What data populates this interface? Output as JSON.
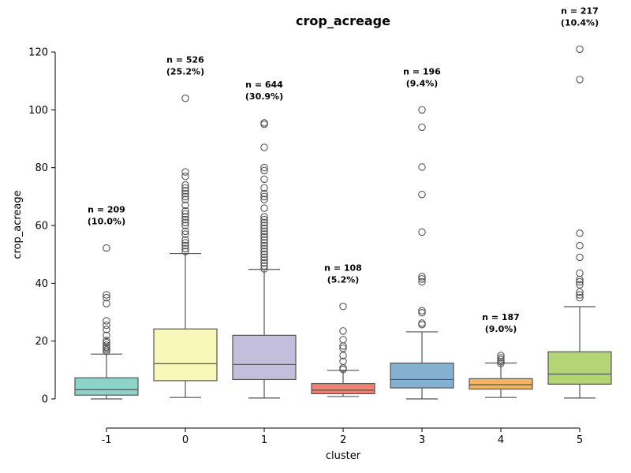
{
  "chart_data": {
    "type": "box",
    "title": "crop_acreage",
    "xlabel": "cluster",
    "ylabel": "crop_acreage",
    "ylim": [
      -10,
      120
    ],
    "yticks": [
      0,
      20,
      40,
      60,
      80,
      100,
      120
    ],
    "grid": false,
    "categories": [
      "-1",
      "0",
      "1",
      "2",
      "3",
      "4",
      "5"
    ],
    "colors": [
      "#8dd3c7",
      "#f7f7b8",
      "#c3bedb",
      "#f18273",
      "#86b0cf",
      "#f4b464",
      "#b3d575"
    ],
    "boxes": [
      {
        "category": "-1",
        "whisker_low": 0,
        "q1": 1.3,
        "median": 3.2,
        "q3": 7.3,
        "whisker_high": 15.5,
        "outliers": [
          16.5,
          17,
          17.6,
          18,
          18.6,
          19.5,
          20.2,
          22,
          24,
          25.5,
          27,
          33,
          35,
          36,
          52.2
        ],
        "annotation": [
          "n = 209",
          "(10.0%)"
        ]
      },
      {
        "category": "0",
        "whisker_low": 0.5,
        "q1": 6.3,
        "median": 12.2,
        "q3": 24.2,
        "whisker_high": 50.3,
        "outliers": [
          51,
          52,
          53,
          54,
          55,
          57,
          58,
          60,
          61,
          62,
          63,
          64,
          65,
          67,
          69,
          70,
          71,
          72,
          73,
          74,
          77,
          78.5,
          104
        ],
        "annotation": [
          "n = 526",
          "(25.2%)"
        ]
      },
      {
        "category": "1",
        "whisker_low": 0.3,
        "q1": 6.7,
        "median": 11.9,
        "q3": 22,
        "whisker_high": 44.8,
        "outliers": [
          45,
          46,
          47,
          48,
          49,
          50,
          51,
          52,
          53,
          54,
          55,
          56,
          57,
          58,
          59,
          60,
          61,
          62,
          63,
          66,
          69,
          70,
          71,
          73,
          76,
          79,
          80,
          87,
          95,
          95.5
        ],
        "annotation": [
          "n = 644",
          "(30.9%)"
        ]
      },
      {
        "category": "2",
        "whisker_low": 0.8,
        "q1": 1.8,
        "median": 3,
        "q3": 5.3,
        "whisker_high": 9.9,
        "outliers": [
          10.2,
          10.7,
          13,
          15,
          17.5,
          18.3,
          20.5,
          23.5,
          32
        ],
        "annotation": [
          "n = 108",
          "(5.2%)"
        ]
      },
      {
        "category": "3",
        "whisker_low": 0,
        "q1": 3.8,
        "median": 6.7,
        "q3": 12.4,
        "whisker_high": 23.2,
        "outliers": [
          25.7,
          26.2,
          29.8,
          30.5,
          40.5,
          41.5,
          42.3,
          57.7,
          70.7,
          80.2,
          94,
          100
        ],
        "annotation": [
          "n = 196",
          "(9.4%)"
        ]
      },
      {
        "category": "4",
        "whisker_low": 0.5,
        "q1": 3.4,
        "median": 4.9,
        "q3": 7,
        "whisker_high": 12.4,
        "outliers": [
          12.3,
          12.9,
          13.5,
          14.2,
          15
        ],
        "annotation": [
          "n = 187",
          "(9.0%)"
        ]
      },
      {
        "category": "5",
        "whisker_low": 0.3,
        "q1": 5.1,
        "median": 8.6,
        "q3": 16.3,
        "whisker_high": 31.9,
        "outliers": [
          35,
          36,
          37,
          39.5,
          40.5,
          41.3,
          43.5,
          49,
          53,
          57.3,
          110.5,
          121
        ],
        "annotation": [
          "n = 217",
          "(10.4%)"
        ]
      }
    ]
  }
}
